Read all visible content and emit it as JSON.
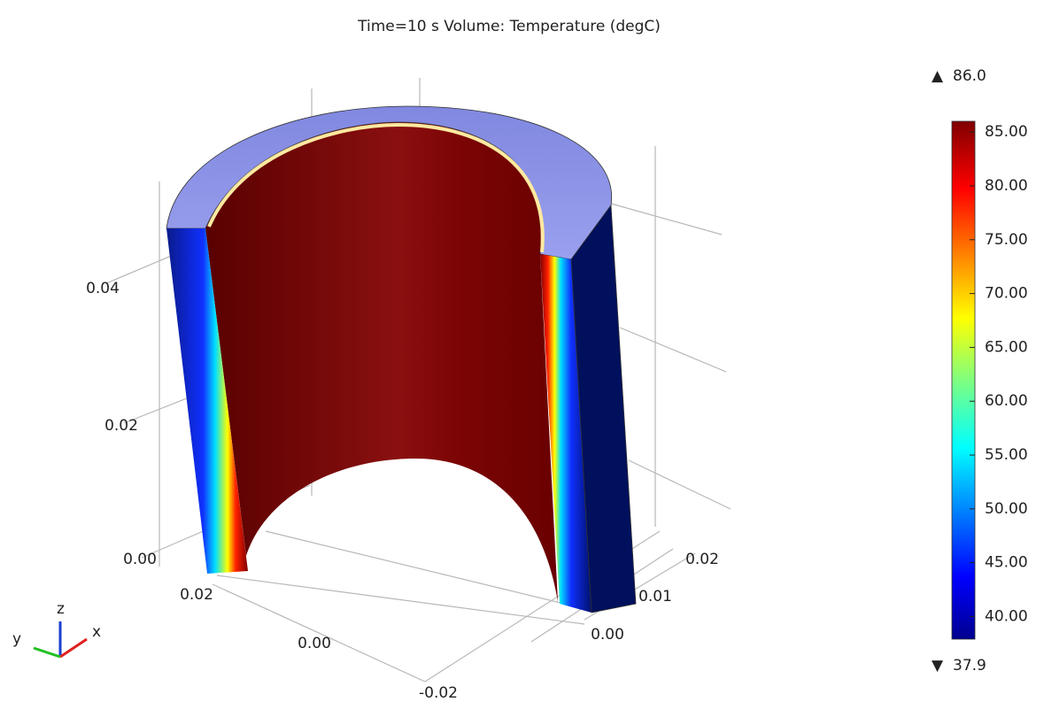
{
  "chart_data": {
    "type": "volume3d",
    "title": "Time=10 s   Volume: Temperature (degC)",
    "colorbar": {
      "max": {
        "value": 86,
        "label": "86.0"
      },
      "min": {
        "value": 37.9,
        "label": "37.9"
      },
      "ticks": [
        {
          "value": 85,
          "label": "85.00"
        },
        {
          "value": 80,
          "label": "80.00"
        },
        {
          "value": 75,
          "label": "75.00"
        },
        {
          "value": 70,
          "label": "70.00"
        },
        {
          "value": 65,
          "label": "65.00"
        },
        {
          "value": 60,
          "label": "60.00"
        },
        {
          "value": 55,
          "label": "55.00"
        },
        {
          "value": 50,
          "label": "50.00"
        },
        {
          "value": 45,
          "label": "45.00"
        },
        {
          "value": 40,
          "label": "40.00"
        }
      ]
    },
    "xticks": [
      {
        "value": 0.02,
        "label": "0.02"
      },
      {
        "value": 0,
        "label": "0.00"
      },
      {
        "value": -0.02,
        "label": "-0.02"
      }
    ],
    "yticks": [
      {
        "value": 0,
        "label": "0.00"
      },
      {
        "value": 0.01,
        "label": "0.01"
      },
      {
        "value": 0.02,
        "label": "0.02"
      }
    ],
    "zticks": [
      {
        "value": 0,
        "label": "0.00"
      },
      {
        "value": 0.02,
        "label": "0.02"
      },
      {
        "value": 0.04,
        "label": "0.04"
      }
    ],
    "triad": {
      "x": "x",
      "y": "y",
      "z": "z"
    }
  }
}
